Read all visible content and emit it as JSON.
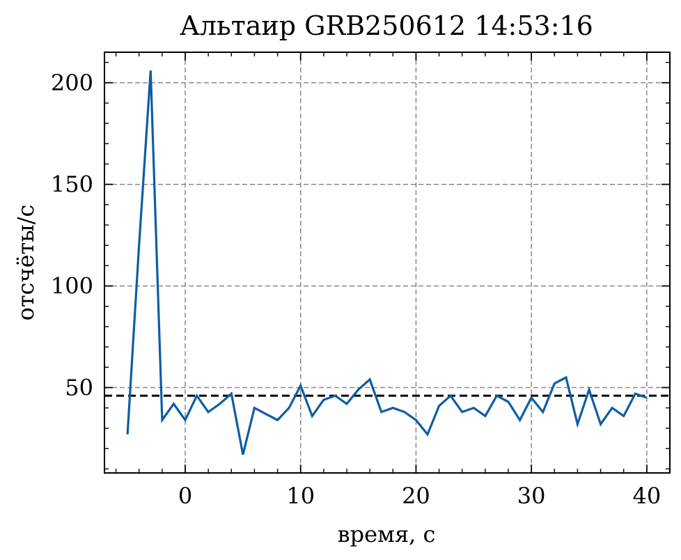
{
  "chart_data": {
    "type": "line",
    "title": "Альтаир GRB250612 14:53:16",
    "xlabel": "время, с",
    "ylabel": "отсчёты/с",
    "xlim": [
      -7,
      42
    ],
    "ylim": [
      8,
      215
    ],
    "xticks": [
      0,
      10,
      20,
      30,
      40
    ],
    "yticks": [
      50,
      100,
      150,
      200
    ],
    "grid": true,
    "series": [
      {
        "color": "#0C5DA5",
        "x": [
          -5,
          -4,
          -3,
          -2,
          -1,
          0,
          1,
          2,
          3,
          4,
          5,
          6,
          7,
          8,
          9,
          10,
          11,
          12,
          13,
          14,
          15,
          16,
          17,
          18,
          19,
          20,
          21,
          22,
          23,
          24,
          25,
          26,
          27,
          28,
          29,
          30,
          31,
          32,
          33,
          34,
          35,
          36,
          37,
          38,
          39,
          40
        ],
        "y": [
          27,
          120,
          206,
          34,
          42,
          34,
          46,
          38,
          42,
          47,
          17,
          40,
          37,
          34,
          40,
          51,
          36,
          44,
          46,
          42,
          49,
          54,
          38,
          40,
          38,
          34,
          27,
          41,
          46,
          38,
          40,
          36,
          46,
          43,
          34,
          45,
          38,
          52,
          55,
          32,
          49,
          32,
          40,
          36,
          47,
          45
        ]
      }
    ],
    "reference_lines": [
      {
        "orientation": "horizontal",
        "y": 46,
        "style": "dashed",
        "color": "#000000"
      }
    ]
  }
}
